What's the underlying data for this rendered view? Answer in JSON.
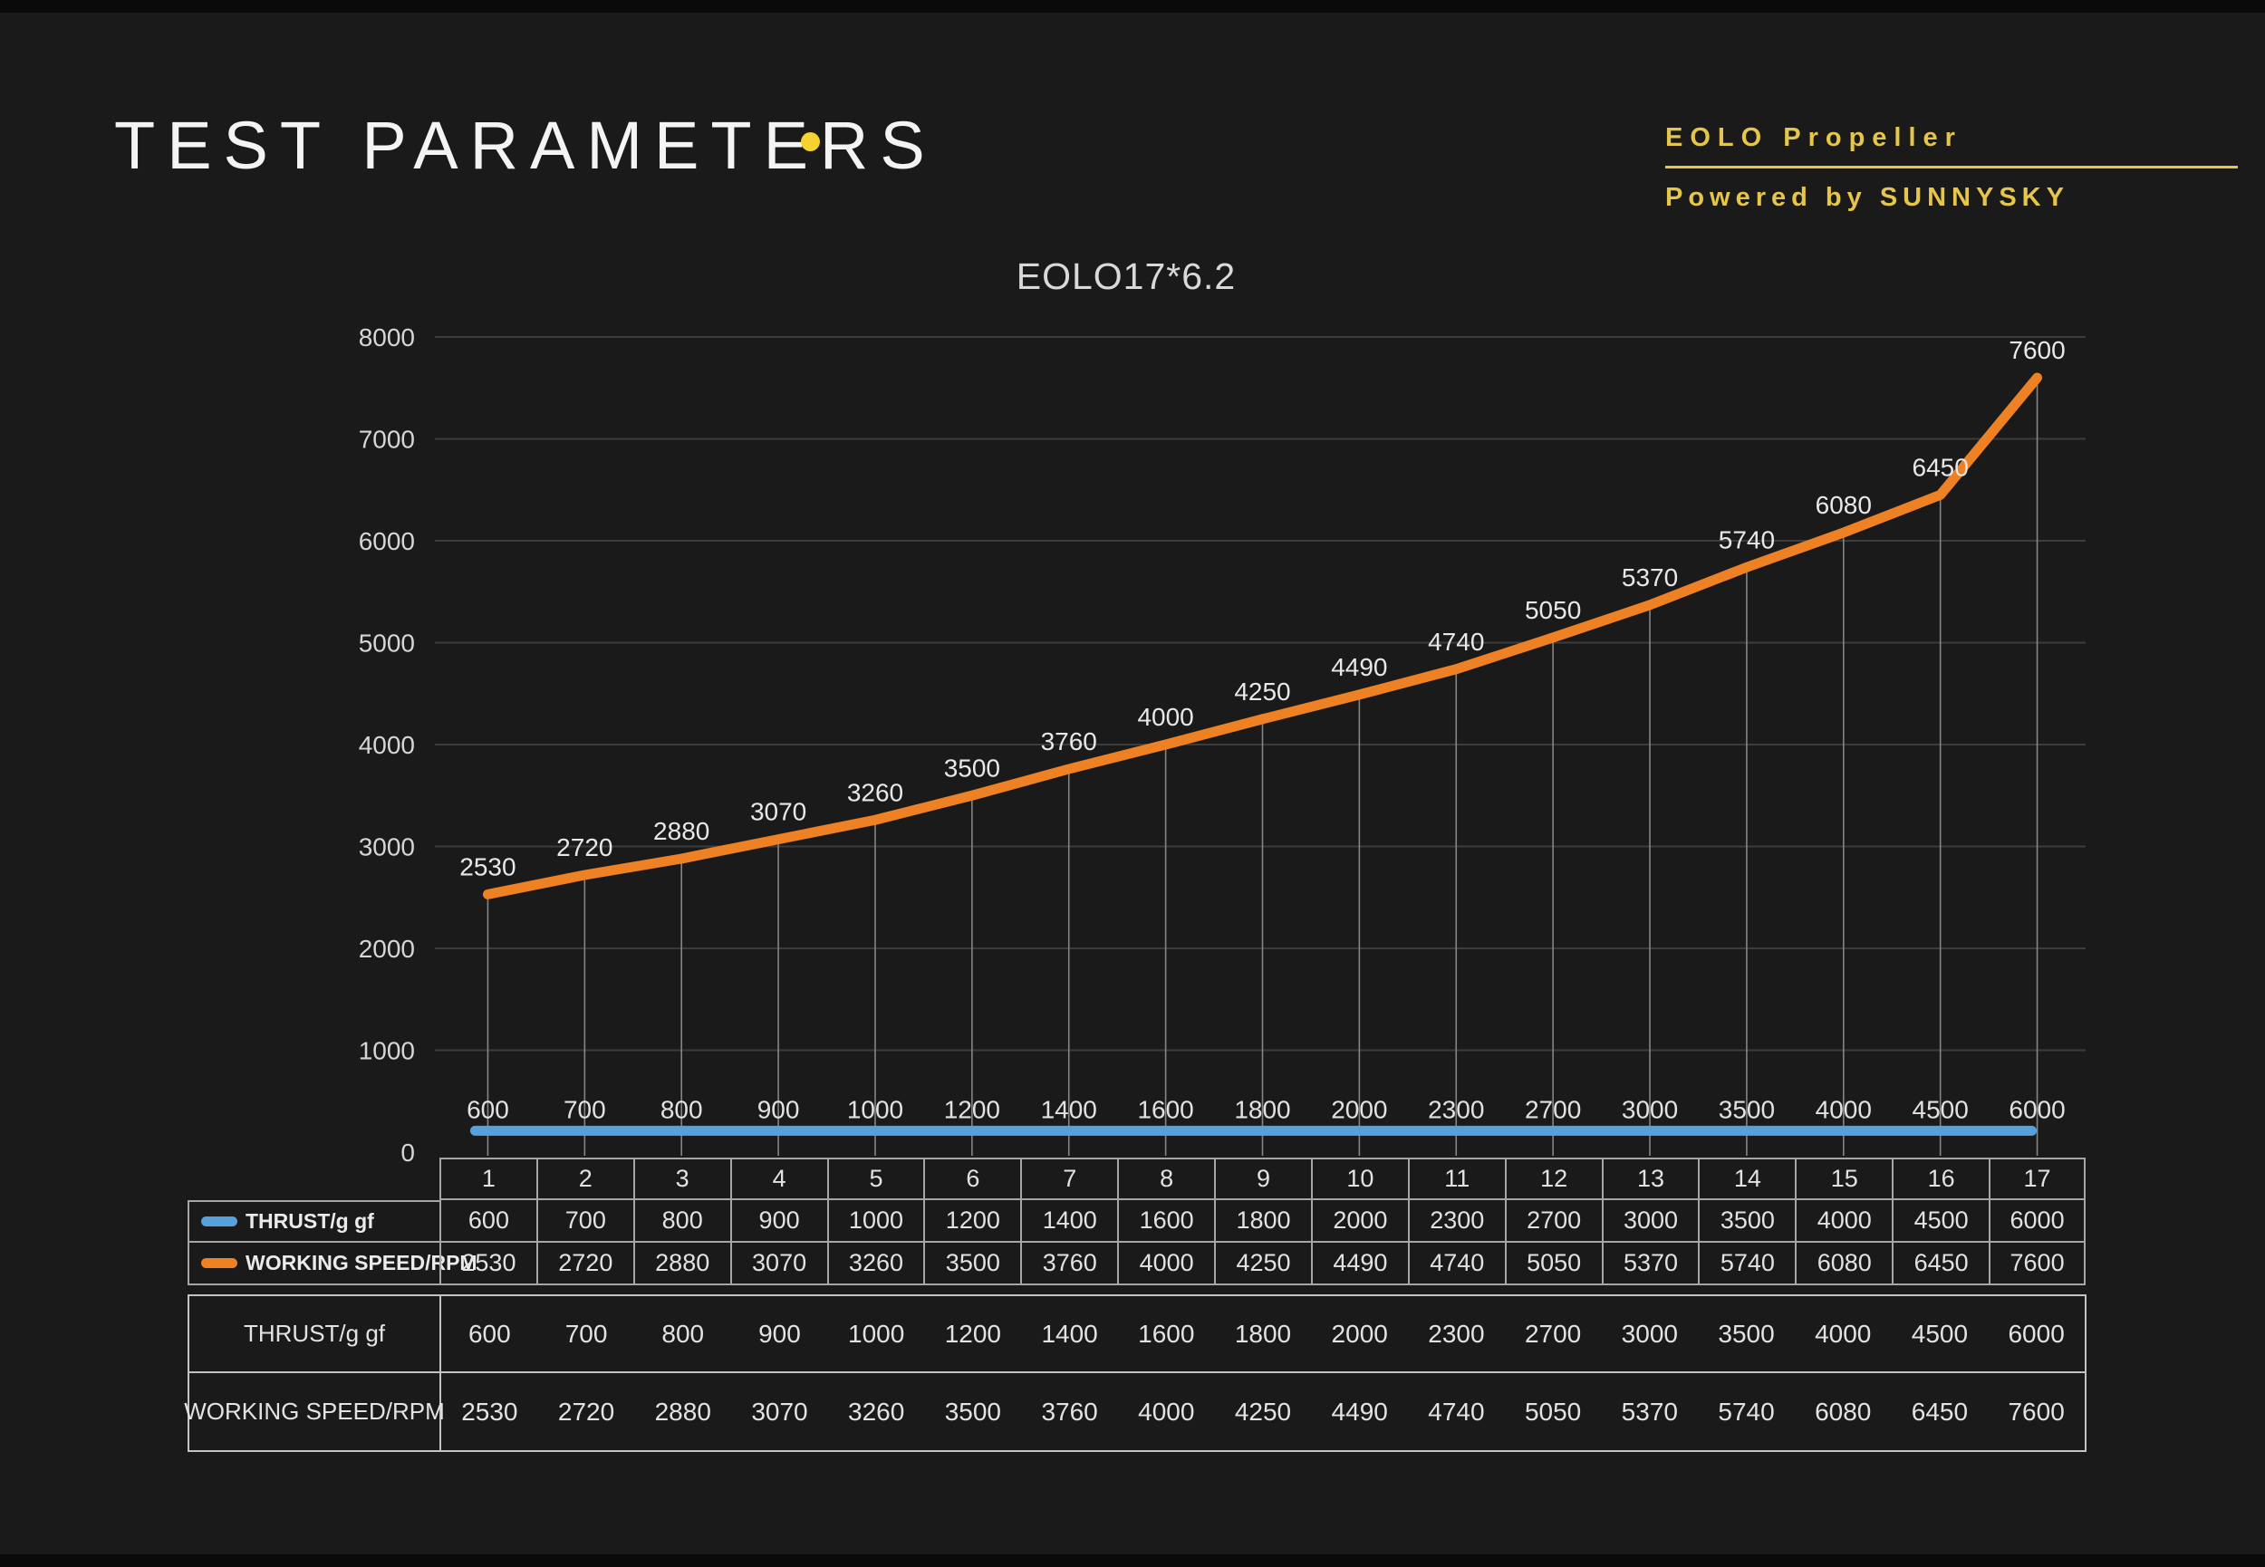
{
  "header": {
    "title": "TEST PARAMETERS",
    "dot_color": "#f3d231",
    "brand_line1": "EOLO Propeller",
    "brand_line2": "Powered by SUNNYSKY",
    "brand_color": "#e5c54a"
  },
  "chart_data": {
    "type": "line",
    "title": "EOLO17*6.2",
    "categories": [
      1,
      2,
      3,
      4,
      5,
      6,
      7,
      8,
      9,
      10,
      11,
      12,
      13,
      14,
      15,
      16,
      17
    ],
    "series": [
      {
        "name": "THRUST/g gf",
        "color": "#57a0dc",
        "values": [
          600,
          700,
          800,
          900,
          1000,
          1200,
          1400,
          1600,
          1800,
          2000,
          2300,
          2700,
          3000,
          3500,
          4000,
          4500,
          6000
        ],
        "plotted_flat_value": 210,
        "labels_position": "above line at bottom of plot"
      },
      {
        "name": "WORKING SPEED/RPM",
        "color": "#ee8124",
        "values": [
          2530,
          2720,
          2880,
          3070,
          3260,
          3500,
          3760,
          4000,
          4250,
          4490,
          4740,
          5050,
          5370,
          5740,
          6080,
          6450,
          7600
        ],
        "labels_position": "above each point"
      }
    ],
    "xlabel": "",
    "ylabel": "",
    "ylim": [
      0,
      8000
    ],
    "yticks": [
      0,
      1000,
      2000,
      3000,
      4000,
      5000,
      6000,
      7000,
      8000
    ],
    "grid": "horizontal gridlines + vertical drop lines from each speed point",
    "legend_position": "table at bottom-left",
    "gridline_color": "#3c3c3c",
    "dropline_color": "#858585",
    "axis_text_color": "#d6d6d6"
  },
  "tables": {
    "upper": {
      "index_header": [
        1,
        2,
        3,
        4,
        5,
        6,
        7,
        8,
        9,
        10,
        11,
        12,
        13,
        14,
        15,
        16,
        17
      ],
      "rows": [
        {
          "label": "THRUST/g gf",
          "swatch_color": "#57a0dc",
          "values": [
            600,
            700,
            800,
            900,
            1000,
            1200,
            1400,
            1600,
            1800,
            2000,
            2300,
            2700,
            3000,
            3500,
            4000,
            4500,
            6000
          ]
        },
        {
          "label": "WORKING SPEED/RPM",
          "swatch_color": "#ee8124",
          "values": [
            2530,
            2720,
            2880,
            3070,
            3260,
            3500,
            3760,
            4000,
            4250,
            4490,
            4740,
            5050,
            5370,
            5740,
            6080,
            6450,
            7600
          ]
        }
      ]
    },
    "lower": {
      "rows": [
        {
          "label": "THRUST/g gf",
          "values": [
            600,
            700,
            800,
            900,
            1000,
            1200,
            1400,
            1600,
            1800,
            2000,
            2300,
            2700,
            3000,
            3500,
            4000,
            4500,
            6000
          ]
        },
        {
          "label": "WORKING SPEED/RPM",
          "values": [
            2530,
            2720,
            2880,
            3070,
            3260,
            3500,
            3760,
            4000,
            4250,
            4490,
            4740,
            5050,
            5370,
            5740,
            6080,
            6450,
            7600
          ]
        }
      ]
    }
  }
}
